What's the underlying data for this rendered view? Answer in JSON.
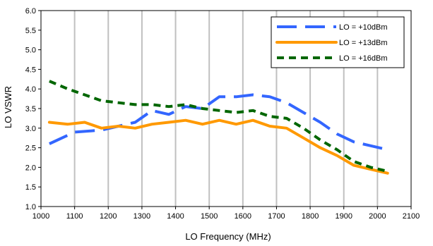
{
  "chart_data": {
    "type": "line",
    "xlabel": "LO Frequency (MHz)",
    "ylabel": "LO VSWR",
    "xlim": [
      1000,
      2100
    ],
    "ylim": [
      1.0,
      6.0
    ],
    "x_ticks": [
      "1000",
      "1100",
      "1200",
      "1300",
      "1400",
      "1500",
      "1600",
      "1700",
      "1800",
      "1900",
      "2000",
      "2100"
    ],
    "y_ticks": [
      "1.0",
      "1.5",
      "2.0",
      "2.5",
      "3.0",
      "3.5",
      "4.0",
      "4.5",
      "5.0",
      "5.5",
      "6.0"
    ],
    "grid": "vertical",
    "legend_position": "top-right",
    "series": [
      {
        "name": "LO = +10dBm",
        "color": "#3366ff",
        "style": "long-dash",
        "x": [
          1025,
          1075,
          1100,
          1180,
          1230,
          1280,
          1330,
          1380,
          1430,
          1480,
          1530,
          1580,
          1630,
          1680,
          1730,
          1780,
          1830,
          1880,
          1930,
          1980,
          2030
        ],
        "y": [
          2.6,
          2.8,
          2.9,
          2.95,
          3.05,
          3.15,
          3.45,
          3.35,
          3.55,
          3.5,
          3.8,
          3.8,
          3.85,
          3.8,
          3.65,
          3.4,
          3.15,
          2.85,
          2.65,
          2.55,
          2.45
        ]
      },
      {
        "name": "LO = +13dBm",
        "color": "#ff9900",
        "style": "solid",
        "x": [
          1025,
          1080,
          1130,
          1180,
          1230,
          1280,
          1330,
          1380,
          1430,
          1480,
          1530,
          1580,
          1630,
          1680,
          1730,
          1780,
          1830,
          1880,
          1930,
          1980,
          2030
        ],
        "y": [
          3.15,
          3.1,
          3.15,
          3.0,
          3.05,
          3.0,
          3.1,
          3.15,
          3.2,
          3.1,
          3.2,
          3.1,
          3.2,
          3.05,
          3.0,
          2.75,
          2.5,
          2.3,
          2.05,
          1.95,
          1.85
        ]
      },
      {
        "name": "LO = +16dBm",
        "color": "#006600",
        "style": "short-dash",
        "x": [
          1025,
          1080,
          1130,
          1180,
          1230,
          1280,
          1330,
          1380,
          1430,
          1480,
          1530,
          1580,
          1630,
          1680,
          1730,
          1780,
          1830,
          1880,
          1930,
          1980,
          2030
        ],
        "y": [
          4.2,
          4.0,
          3.85,
          3.7,
          3.65,
          3.6,
          3.6,
          3.55,
          3.6,
          3.5,
          3.45,
          3.4,
          3.45,
          3.3,
          3.25,
          3.0,
          2.7,
          2.45,
          2.15,
          2.0,
          1.9
        ]
      }
    ]
  }
}
